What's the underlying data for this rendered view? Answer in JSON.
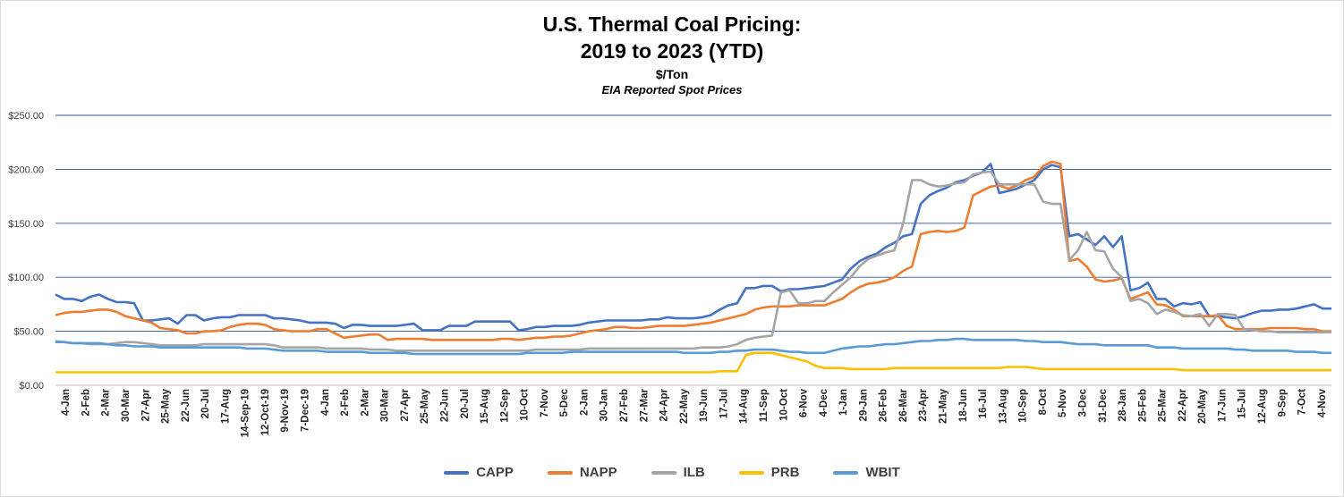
{
  "chart_data": {
    "type": "line",
    "title_lines": [
      "U.S. Thermal Coal Pricing:",
      "2019 to 2023 (YTD)"
    ],
    "subtitle": "$/Ton",
    "note": "EIA Reported Spot Prices",
    "xlabel": "",
    "ylabel": "",
    "ylim": [
      0,
      250
    ],
    "y_ticks": [
      {
        "value": 0,
        "label": "$0.00"
      },
      {
        "value": 50,
        "label": "$50.00"
      },
      {
        "value": 100,
        "label": "$100.00"
      },
      {
        "value": 150,
        "label": "$150.00"
      },
      {
        "value": 200,
        "label": "$200.00"
      },
      {
        "value": 250,
        "label": "$250.00"
      }
    ],
    "grid": true,
    "legend_position": "bottom",
    "x_tick_labels": [
      "4-Jan",
      "2-Feb",
      "2-Mar",
      "30-Mar",
      "27-Apr",
      "25-May",
      "22-Jun",
      "20-Jul",
      "17-Aug",
      "14-Sep-19",
      "12-Oct-19",
      "9-Nov-19",
      "7-Dec-19",
      "4-Jan",
      "2-Feb",
      "2-Mar",
      "30-Mar",
      "27-Apr",
      "25-May",
      "22-Jun",
      "20-Jul",
      "15-Aug",
      "12-Sep",
      "10-Oct",
      "7-Nov",
      "5-Dec",
      "2-Jan",
      "30-Jan",
      "27-Feb",
      "27-Mar",
      "24-Apr",
      "22-May",
      "19-Jun",
      "17-Jul",
      "14-Aug",
      "11-Sep",
      "10-Oct",
      "6-Nov",
      "4-Dec",
      "1-Jan",
      "29-Jan",
      "26-Feb",
      "26-Mar",
      "23-Apr",
      "21-May",
      "18-Jun",
      "16-Jul",
      "13-Aug",
      "10-Sep",
      "8-Oct",
      "5-Nov",
      "3-Dec",
      "31-Dec",
      "28-Jan",
      "25-Feb",
      "25-Mar",
      "22-Apr",
      "20-May",
      "17-Jun",
      "15-Jul",
      "12-Aug",
      "9-Sep",
      "7-Oct",
      "4-Nov"
    ],
    "series": [
      {
        "name": "CAPP",
        "color": "#4472c4",
        "values": [
          84,
          80,
          80,
          78,
          82,
          84,
          80,
          77,
          77,
          76,
          60,
          60,
          61,
          62,
          57,
          65,
          65,
          60,
          62,
          63,
          63,
          65,
          65,
          65,
          65,
          62,
          62,
          61,
          60,
          58,
          58,
          58,
          57,
          53,
          56,
          56,
          55,
          55,
          55,
          55,
          56,
          57,
          51,
          51,
          51,
          55,
          55,
          55,
          59,
          59,
          59,
          59,
          59,
          51,
          52,
          54,
          54,
          55,
          55,
          55,
          56,
          58,
          59,
          60,
          60,
          60,
          60,
          60,
          61,
          61,
          63,
          62,
          62,
          62,
          63,
          65,
          70,
          74,
          76,
          90,
          90,
          92,
          92,
          87,
          89,
          89,
          90,
          91,
          92,
          95,
          98,
          108,
          115,
          119,
          122,
          128,
          132,
          138,
          140,
          168,
          176,
          180,
          183,
          188,
          190,
          194,
          197,
          205,
          178,
          180,
          182,
          186,
          190,
          200,
          204,
          202,
          138,
          140,
          135,
          130,
          138,
          128,
          138,
          88,
          90,
          95,
          80,
          80,
          73,
          76,
          75,
          77,
          64,
          64,
          63,
          62,
          64,
          67,
          69,
          69,
          70,
          70,
          71,
          73,
          75,
          71,
          71
        ]
      },
      {
        "name": "NAPP",
        "color": "#ed7d31",
        "values": [
          65,
          67,
          68,
          68,
          69,
          70,
          70,
          68,
          64,
          62,
          60,
          58,
          53,
          52,
          51,
          48,
          48,
          50,
          50,
          51,
          54,
          56,
          57,
          57,
          56,
          52,
          51,
          50,
          50,
          50,
          52,
          52,
          48,
          44,
          45,
          46,
          47,
          47,
          42,
          43,
          43,
          43,
          43,
          42,
          42,
          42,
          42,
          42,
          42,
          42,
          42,
          43,
          43,
          42,
          43,
          44,
          44,
          45,
          45,
          46,
          48,
          50,
          51,
          52,
          54,
          54,
          53,
          53,
          54,
          55,
          55,
          55,
          55,
          56,
          57,
          58,
          60,
          62,
          64,
          66,
          70,
          72,
          73,
          73,
          73,
          74,
          74,
          74,
          74,
          77,
          80,
          86,
          91,
          94,
          95,
          97,
          100,
          106,
          110,
          140,
          142,
          143,
          142,
          143,
          146,
          176,
          180,
          184,
          185,
          182,
          185,
          190,
          193,
          203,
          207,
          205,
          115,
          117,
          110,
          98,
          96,
          97,
          99,
          80,
          83,
          86,
          75,
          74,
          70,
          64,
          64,
          64,
          64,
          65,
          55,
          52,
          52,
          52,
          52,
          53,
          53,
          53,
          53,
          52,
          52,
          50,
          50
        ]
      },
      {
        "name": "ILB",
        "color": "#a5a5a5",
        "values": [
          41,
          40,
          39,
          39,
          38,
          38,
          38,
          39,
          40,
          40,
          39,
          38,
          37,
          37,
          37,
          37,
          37,
          38,
          38,
          38,
          38,
          38,
          38,
          38,
          38,
          37,
          35,
          35,
          35,
          35,
          35,
          34,
          34,
          34,
          34,
          34,
          33,
          33,
          33,
          32,
          32,
          32,
          32,
          32,
          32,
          32,
          32,
          32,
          32,
          32,
          32,
          32,
          32,
          32,
          32,
          33,
          33,
          33,
          33,
          33,
          33,
          34,
          34,
          34,
          34,
          34,
          34,
          34,
          34,
          34,
          34,
          34,
          34,
          34,
          35,
          35,
          35,
          36,
          38,
          42,
          44,
          45,
          46,
          86,
          88,
          76,
          76,
          78,
          78,
          86,
          93,
          100,
          110,
          117,
          120,
          123,
          125,
          150,
          190,
          190,
          186,
          184,
          185,
          187,
          188,
          195,
          197,
          198,
          186,
          186,
          186,
          186,
          186,
          170,
          168,
          168,
          116,
          125,
          142,
          125,
          124,
          108,
          100,
          78,
          80,
          76,
          66,
          70,
          68,
          65,
          64,
          66,
          55,
          66,
          66,
          65,
          52,
          51,
          50,
          50,
          49,
          49,
          49,
          49,
          49,
          49,
          49
        ]
      },
      {
        "name": "PRB",
        "color": "#ffc000",
        "values": [
          12,
          12,
          12,
          12,
          12,
          12,
          12,
          12,
          12,
          12,
          12,
          12,
          12,
          12,
          12,
          12,
          12,
          12,
          12,
          12,
          12,
          12,
          12,
          12,
          12,
          12,
          12,
          12,
          12,
          12,
          12,
          12,
          12,
          12,
          12,
          12,
          12,
          12,
          12,
          12,
          12,
          12,
          12,
          12,
          12,
          12,
          12,
          12,
          12,
          12,
          12,
          12,
          12,
          12,
          12,
          12,
          12,
          12,
          12,
          12,
          12,
          12,
          12,
          12,
          12,
          12,
          12,
          12,
          12,
          12,
          12,
          12,
          12,
          12,
          12,
          12,
          13,
          13,
          13,
          28,
          30,
          30,
          30,
          28,
          26,
          24,
          22,
          18,
          16,
          16,
          16,
          15,
          15,
          15,
          15,
          15,
          16,
          16,
          16,
          16,
          16,
          16,
          16,
          16,
          16,
          16,
          16,
          16,
          16,
          17,
          17,
          17,
          16,
          15,
          15,
          15,
          15,
          15,
          15,
          15,
          15,
          15,
          15,
          15,
          15,
          15,
          15,
          15,
          15,
          14,
          14,
          14,
          14,
          14,
          14,
          14,
          14,
          14,
          14,
          14,
          14,
          14,
          14,
          14,
          14,
          14,
          14
        ]
      },
      {
        "name": "WBIT",
        "color": "#5b9bd5",
        "values": [
          40,
          40,
          39,
          39,
          39,
          39,
          38,
          37,
          37,
          36,
          36,
          36,
          35,
          35,
          35,
          35,
          35,
          35,
          35,
          35,
          35,
          35,
          34,
          34,
          34,
          33,
          32,
          32,
          32,
          32,
          32,
          31,
          31,
          31,
          31,
          31,
          30,
          30,
          30,
          30,
          30,
          29,
          29,
          29,
          29,
          29,
          29,
          29,
          29,
          29,
          29,
          29,
          29,
          29,
          30,
          30,
          30,
          30,
          30,
          31,
          31,
          31,
          31,
          31,
          31,
          31,
          31,
          31,
          31,
          31,
          31,
          31,
          30,
          30,
          30,
          30,
          31,
          31,
          32,
          32,
          33,
          33,
          33,
          32,
          31,
          31,
          30,
          30,
          30,
          32,
          34,
          35,
          36,
          36,
          37,
          38,
          38,
          39,
          40,
          41,
          41,
          42,
          42,
          43,
          43,
          42,
          42,
          42,
          42,
          42,
          42,
          41,
          41,
          40,
          40,
          40,
          39,
          38,
          38,
          38,
          37,
          37,
          37,
          37,
          37,
          37,
          35,
          35,
          35,
          34,
          34,
          34,
          34,
          34,
          34,
          33,
          33,
          32,
          32,
          32,
          32,
          32,
          31,
          31,
          31,
          30,
          30
        ]
      }
    ]
  }
}
